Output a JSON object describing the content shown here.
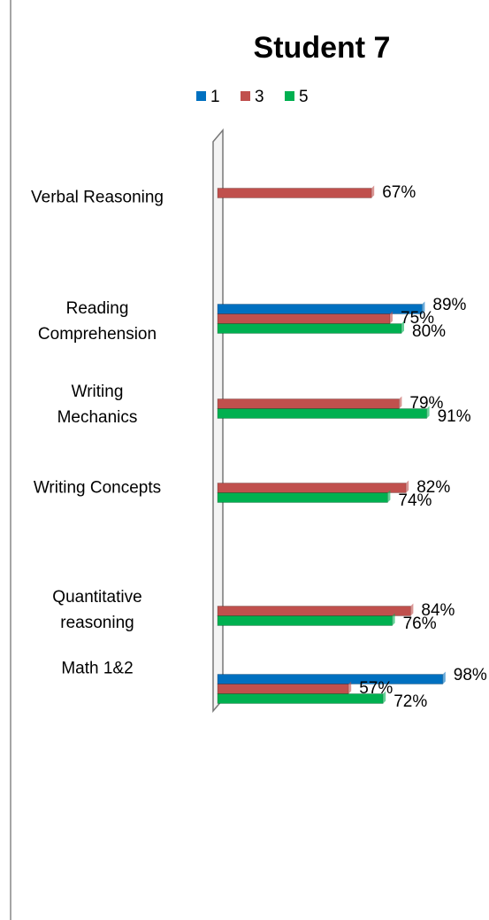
{
  "chart_data": {
    "type": "bar",
    "orientation": "horizontal",
    "title": "Student 7",
    "categories": [
      "Verbal Reasoning",
      "Reading\nComprehension",
      "Writing\nMechanics",
      "Writing Concepts",
      "Quantitative\nreasoning",
      "Math 1&2"
    ],
    "series": [
      {
        "name": "1",
        "color": "#0070c0",
        "values": [
          null,
          89,
          null,
          null,
          null,
          98
        ],
        "value_labels": [
          null,
          "89%",
          null,
          null,
          null,
          "98%"
        ]
      },
      {
        "name": "3",
        "color": "#c0504d",
        "values": [
          67,
          75,
          79,
          82,
          84,
          57
        ],
        "value_labels": [
          "67%",
          "75%",
          "79%",
          "82%",
          "84%",
          "57%"
        ]
      },
      {
        "name": "5",
        "color": "#00b050",
        "values": [
          null,
          80,
          91,
          74,
          76,
          72
        ],
        "value_labels": [
          null,
          "80%",
          "91%",
          "74%",
          "76%",
          "72%"
        ]
      }
    ],
    "xlim": [
      0,
      100
    ],
    "legend": "top"
  }
}
